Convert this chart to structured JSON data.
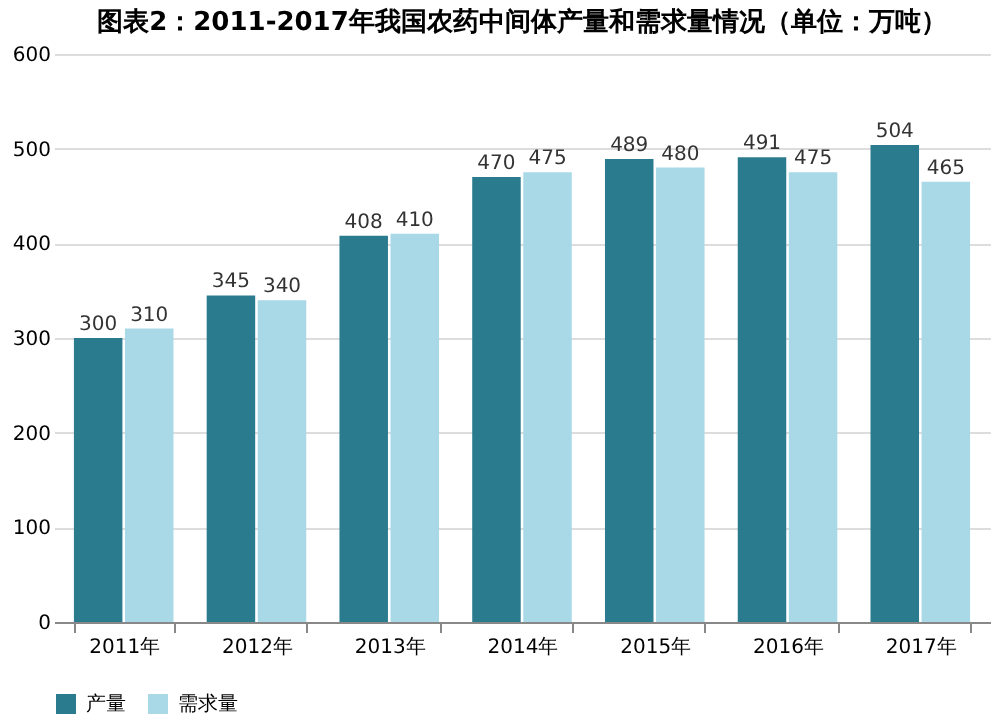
{
  "chart_data": {
    "type": "bar",
    "title": "图表2：2011-2017年我国农药中间体产量和需求量情况（单位：万吨）",
    "categories": [
      "2011年",
      "2012年",
      "2013年",
      "2014年",
      "2015年",
      "2016年",
      "2017年"
    ],
    "series": [
      {
        "name": "产量",
        "color": "#2b7b8e",
        "values": [
          300,
          345,
          408,
          470,
          489,
          491,
          504
        ]
      },
      {
        "name": "需求量",
        "color": "#a9d9e7",
        "values": [
          310,
          340,
          410,
          475,
          480,
          475,
          465
        ]
      }
    ],
    "ylim": [
      0,
      600
    ],
    "yticks": [
      0,
      100,
      200,
      300,
      400,
      500,
      600
    ],
    "grid": "y",
    "legend": "bottom",
    "data_labels": true
  }
}
